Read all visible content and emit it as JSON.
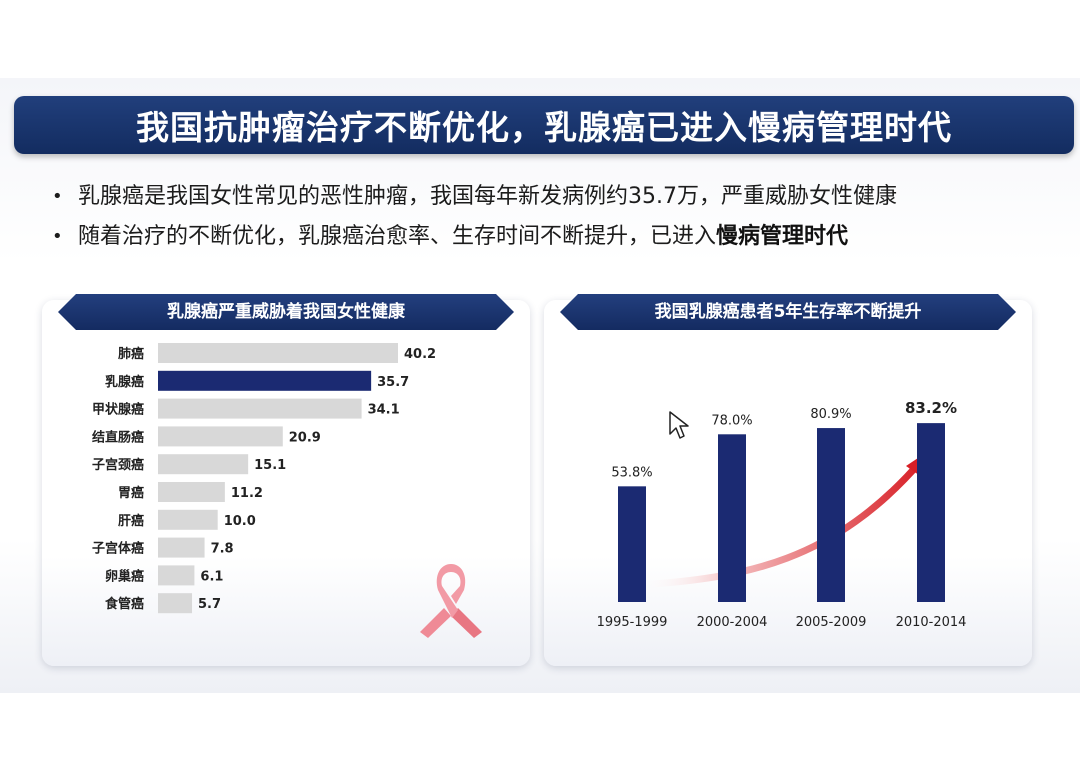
{
  "title": "我国抗肿瘤治疗不断优化，乳腺癌已进入慢病管理时代",
  "bullets": [
    {
      "text": "乳腺癌是我国女性常见的恶性肿瘤，我国每年新发病例约35.7万，严重威胁女性健康",
      "bold": ""
    },
    {
      "text": "随着治疗的不断优化，乳腺癌治愈率、生存时间不断提升，已进入",
      "bold": "慢病管理时代"
    }
  ],
  "left_panel": {
    "title": "乳腺癌严重威胁着我国女性健康"
  },
  "right_panel": {
    "title": "我国乳腺癌患者5年生存率不断提升"
  },
  "colors": {
    "navy": "#1b2a72",
    "bar_gray": "#d8d8d8",
    "highlight": "#1b2a72",
    "arrow_red": "#d81f26",
    "ribbon": "#f08b95"
  },
  "icons": [
    "pink-ribbon-icon",
    "mouse-cursor-icon",
    "trend-arrow-icon"
  ],
  "chart_data": [
    {
      "type": "bar",
      "orientation": "horizontal",
      "categories": [
        "肺癌",
        "乳腺癌",
        "甲状腺癌",
        "结直肠癌",
        "子宫颈癌",
        "胃癌",
        "肝癌",
        "子宫体癌",
        "卵巢癌",
        "食管癌"
      ],
      "values": [
        40.2,
        35.7,
        34.1,
        20.9,
        15.1,
        11.2,
        10.0,
        7.8,
        6.1,
        5.7
      ],
      "value_labels": [
        "40.2",
        "35.7",
        "34.1",
        "20.9",
        "15.1",
        "11.2",
        "10.0",
        "7.8",
        "6.1",
        "5.7"
      ],
      "highlight_category": "乳腺癌",
      "title": "乳腺癌严重威胁着我国女性健康",
      "xlabel": "",
      "ylabel": "",
      "xlim": [
        0,
        40.2
      ],
      "grid": false
    },
    {
      "type": "bar",
      "categories": [
        "1995-1999",
        "2000-2004",
        "2005-2009",
        "2010-2014"
      ],
      "values": [
        53.8,
        78.0,
        80.9,
        83.2
      ],
      "value_labels": [
        "53.8%",
        "78.0%",
        "80.9%",
        "83.2%"
      ],
      "emphasized_label": "83.2%",
      "title": "我国乳腺癌患者5年生存率不断提升",
      "xlabel": "",
      "ylabel": "",
      "ylim": [
        0,
        100
      ],
      "grid": false,
      "trend_arrow": true
    }
  ]
}
